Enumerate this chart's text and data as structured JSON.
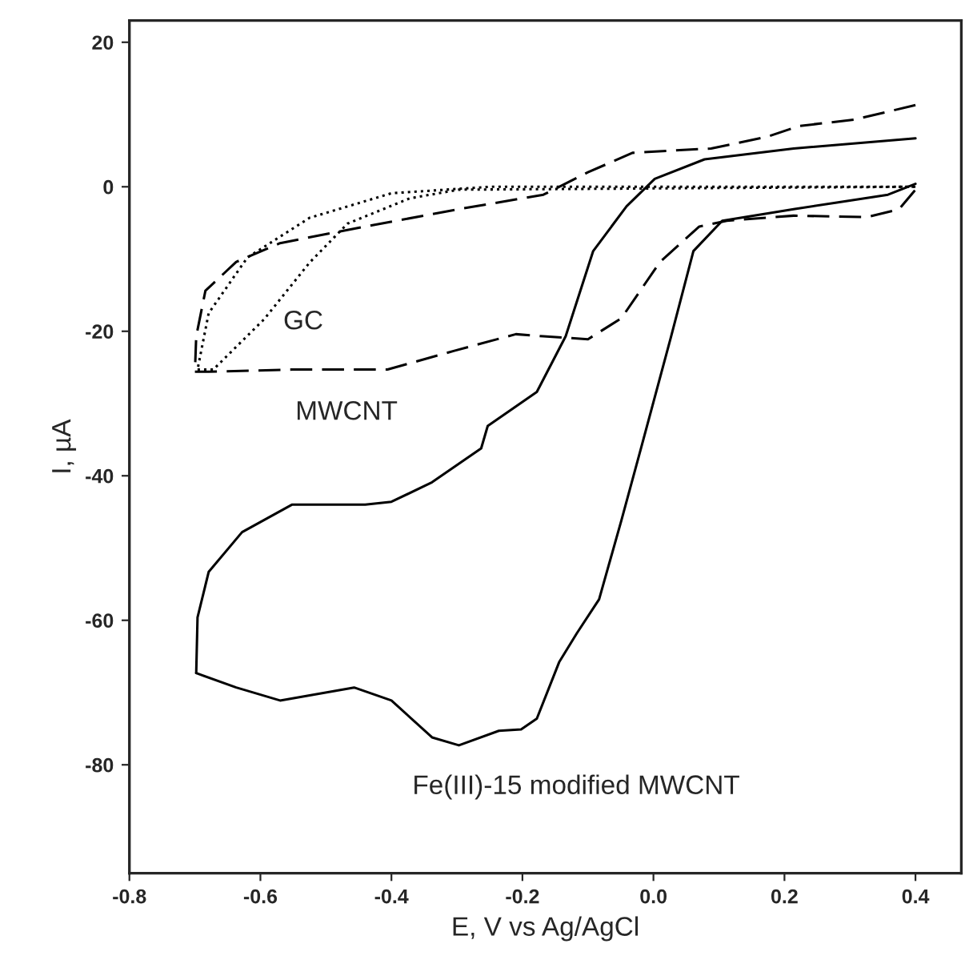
{
  "chart_data": {
    "type": "line",
    "xlabel": "E, V vs Ag/AgCl",
    "ylabel": "I, µA",
    "xlim": [
      -0.8,
      0.47
    ],
    "ylim": [
      -95,
      23
    ],
    "xticks": [
      -0.8,
      -0.6,
      -0.4,
      -0.2,
      {
        "value": 0,
        "label": "0.0"
      },
      0.2,
      0.4
    ],
    "yticks": [
      -80,
      -60,
      -40,
      -20,
      0,
      20
    ],
    "grid": false,
    "legend": false,
    "marker": "none",
    "series": [
      {
        "color": "#000000",
        "line_style": "dotted",
        "x": [
          0.4,
          -0.25,
          -0.4,
          -0.525,
          -0.62,
          -0.679,
          -0.696
        ],
        "values": [
          0,
          0,
          -0.9,
          -4.3,
          -9.8,
          -17.5,
          -25.3
        ]
      },
      {
        "color": "#000000",
        "line_style": "dotted",
        "x": [
          -0.696,
          -0.672,
          -0.594,
          -0.525,
          -0.467,
          -0.372,
          -0.297,
          0.4
        ],
        "values": [
          -25.3,
          -25.3,
          -18.3,
          -10.5,
          -5.1,
          -1.6,
          -0.4,
          0
        ]
      },
      {
        "color": "#000000",
        "line_style": "dashed",
        "x": [
          0.4,
          0.307,
          0.222,
          0.173,
          0.088,
          -0.032,
          -0.1,
          -0.168,
          -0.297,
          -0.44,
          -0.57,
          -0.637,
          -0.684,
          -0.698,
          -0.7
        ],
        "values": [
          11.3,
          9.3,
          8.4,
          6.9,
          5.3,
          4.7,
          2.0,
          -1.1,
          -3.1,
          -5.5,
          -7.8,
          -10.4,
          -14.4,
          -20.7,
          -25.6
        ]
      },
      {
        "color": "#000000",
        "line_style": "dashed",
        "x": [
          -0.7,
          -0.679,
          -0.552,
          -0.406,
          -0.304,
          -0.21,
          -0.168,
          -0.1,
          -0.049,
          0.01,
          0.07,
          0.112,
          0.214,
          0.326,
          0.375,
          0.4
        ],
        "values": [
          -25.6,
          -25.6,
          -25.3,
          -25.3,
          -22.7,
          -20.4,
          -20.7,
          -21.1,
          -18.2,
          -10.4,
          -5.5,
          -4.7,
          -4.0,
          -4.2,
          -3.1,
          -0.4
        ]
      },
      {
        "color": "#000000",
        "line_style": "solid",
        "x": [
          -0.698,
          -0.696,
          -0.679,
          -0.628,
          -0.552,
          -0.44,
          -0.4,
          -0.338,
          -0.263,
          -0.253,
          -0.178,
          -0.134,
          -0.092,
          -0.041,
          0.002,
          0.078,
          0.214,
          0.4
        ],
        "values": [
          -67.3,
          -59.6,
          -53.3,
          -47.8,
          -44.0,
          -44.0,
          -43.6,
          -40.9,
          -36.2,
          -33.1,
          -28.4,
          -20.7,
          -8.9,
          -2.7,
          1.1,
          3.8,
          5.3,
          6.7
        ]
      },
      {
        "color": "#000000",
        "line_style": "solid",
        "x": [
          0.4,
          0.358,
          0.214,
          0.105,
          0.061,
          0.027,
          -0.019,
          -0.049,
          -0.083,
          -0.117,
          -0.144,
          -0.178,
          -0.202,
          -0.236,
          -0.297,
          -0.338,
          -0.4,
          -0.457,
          -0.57,
          -0.637,
          -0.698
        ],
        "values": [
          0.4,
          -1.1,
          -3.1,
          -4.7,
          -8.9,
          -20.7,
          -36.2,
          -46.2,
          -57.1,
          -61.8,
          -65.8,
          -73.6,
          -75.1,
          -75.3,
          -77.3,
          -76.2,
          -71.1,
          -69.3,
          -71.1,
          -69.3,
          -67.3
        ]
      }
    ],
    "annotations": [
      "GC",
      "MWCNT",
      "Fe(III)-15 modified MWCNT"
    ]
  }
}
